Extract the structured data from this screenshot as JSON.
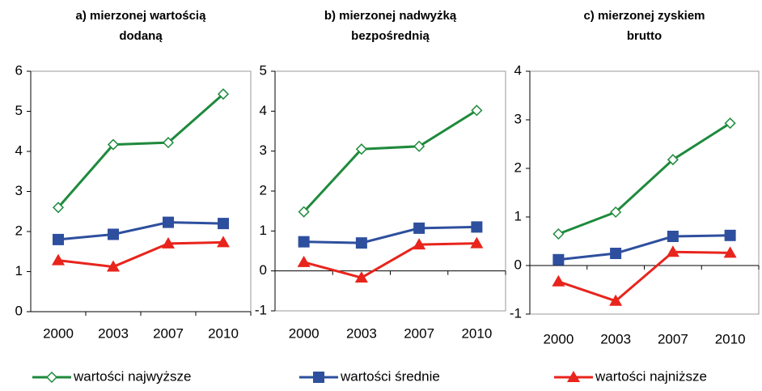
{
  "chart_data": [
    {
      "type": "line",
      "title": [
        "a) mierzonej wartością",
        "dodaną"
      ],
      "categories": [
        "2000",
        "2003",
        "2007",
        "2010"
      ],
      "ylim": [
        0,
        6
      ],
      "yticks": [
        0,
        1,
        2,
        3,
        4,
        5,
        6
      ],
      "series": [
        {
          "values": [
            2.6,
            4.17,
            4.22,
            5.43
          ]
        },
        {
          "values": [
            1.8,
            1.93,
            2.23,
            2.2
          ]
        },
        {
          "values": [
            1.28,
            1.12,
            1.7,
            1.73
          ]
        }
      ]
    },
    {
      "type": "line",
      "title": [
        "b) mierzonej nadwyżką",
        "bezpośrednią"
      ],
      "categories": [
        "2000",
        "2003",
        "2007",
        "2010"
      ],
      "ylim": [
        -1,
        5
      ],
      "yticks": [
        -1,
        0,
        1,
        2,
        3,
        4,
        5
      ],
      "series": [
        {
          "values": [
            1.48,
            3.05,
            3.12,
            4.02
          ]
        },
        {
          "values": [
            0.73,
            0.7,
            1.07,
            1.1
          ]
        },
        {
          "values": [
            0.22,
            -0.17,
            0.66,
            0.69
          ]
        }
      ]
    },
    {
      "type": "line",
      "title": [
        "c) mierzonej zyskiem",
        "brutto"
      ],
      "categories": [
        "2000",
        "2003",
        "2007",
        "2010"
      ],
      "ylim": [
        -1,
        4
      ],
      "yticks": [
        -1,
        0,
        1,
        2,
        3,
        4
      ],
      "series": [
        {
          "values": [
            0.65,
            1.1,
            2.18,
            2.93
          ]
        },
        {
          "values": [
            0.12,
            0.25,
            0.6,
            0.62
          ]
        },
        {
          "values": [
            -0.33,
            -0.73,
            0.28,
            0.26
          ]
        }
      ]
    }
  ],
  "legend": [
    {
      "name": "wartości najwyższe",
      "color": "#1e8a3c",
      "marker": "diamond"
    },
    {
      "name": "wartości średnie",
      "color": "#2e4f9e",
      "marker": "square"
    },
    {
      "name": "wartości najniższe",
      "color": "#e8241c",
      "marker": "triangle"
    }
  ]
}
